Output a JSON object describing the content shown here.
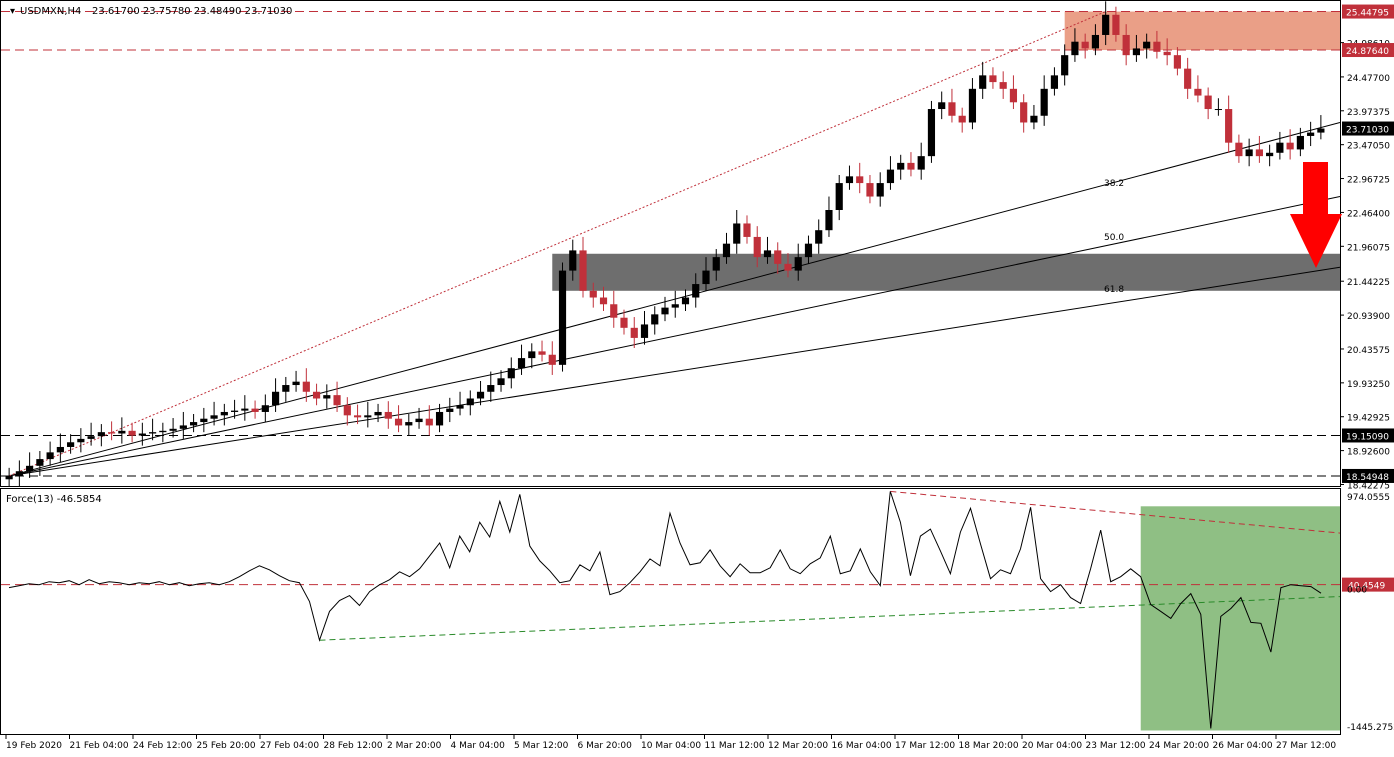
{
  "header": {
    "symbol": "USDMXN,H4",
    "ohlc": "23.61700 23.75780 23.48490 23.71030"
  },
  "indicator": {
    "label": "Force(13) -46.5854"
  },
  "colors": {
    "background": "#ffffff",
    "bull_candle": "#000000",
    "bear_candle": "#c0303a",
    "resistance_zone": "#e8957a",
    "support_zone": "#6e6e6e",
    "force_zone": "#8fbf84",
    "dashed_level": "#c0303a",
    "arrow": "#ff0000",
    "green_trend": "#2a8a2a"
  },
  "chart_data": [
    {
      "type": "candlestick",
      "title": "USDMXN,H4",
      "ylim": [
        18.43,
        25.56
      ],
      "grid": false,
      "y_ticks": [
        "25.44795",
        "24.98610",
        "24.87640",
        "24.47700",
        "23.97375",
        "23.71030",
        "23.47050",
        "22.96725",
        "22.46400",
        "21.96075",
        "21.44225",
        "20.93900",
        "20.43575",
        "19.93250",
        "19.42925",
        "19.15090",
        "18.92600",
        "18.54948",
        "18.42275"
      ],
      "y_tick_values": [
        25.44795,
        24.9861,
        24.8764,
        24.477,
        23.97375,
        23.7103,
        23.4705,
        22.96725,
        22.464,
        21.96075,
        21.44225,
        20.939,
        20.43575,
        19.9325,
        19.42925,
        19.1509,
        18.926,
        18.54948,
        18.42275
      ],
      "highlighted_labels": [
        "25.44795",
        "24.87640",
        "23.71030",
        "19.15090",
        "18.54948"
      ],
      "x_ticks": [
        "19 Feb 2020",
        "21 Feb 04:00",
        "24 Feb 12:00",
        "25 Feb 20:00",
        "27 Feb 04:00",
        "28 Feb 12:00",
        "2 Mar 20:00",
        "4 Mar 04:00",
        "5 Mar 12:00",
        "6 Mar 20:00",
        "10 Mar 04:00",
        "11 Mar 12:00",
        "12 Mar 20:00",
        "16 Mar 04:00",
        "17 Mar 12:00",
        "18 Mar 20:00",
        "20 Mar 04:00",
        "23 Mar 12:00",
        "24 Mar 20:00",
        "26 Mar 04:00",
        "27 Mar 12:00"
      ],
      "closes": [
        18.55,
        18.62,
        18.7,
        18.8,
        18.9,
        18.98,
        19.05,
        19.1,
        19.14,
        19.2,
        19.18,
        19.22,
        19.15,
        19.18,
        19.2,
        19.22,
        19.25,
        19.3,
        19.35,
        19.4,
        19.45,
        19.5,
        19.52,
        19.55,
        19.5,
        19.6,
        19.8,
        19.9,
        19.95,
        19.8,
        19.7,
        19.75,
        19.6,
        19.45,
        19.42,
        19.45,
        19.5,
        19.4,
        19.3,
        19.35,
        19.4,
        19.3,
        19.5,
        19.55,
        19.6,
        19.7,
        19.8,
        19.9,
        20.0,
        20.15,
        20.3,
        20.4,
        20.35,
        20.2,
        21.6,
        21.9,
        21.3,
        21.2,
        21.1,
        20.9,
        20.75,
        20.6,
        20.8,
        20.95,
        21.05,
        21.1,
        21.2,
        21.4,
        21.6,
        21.8,
        22.0,
        22.3,
        22.1,
        21.8,
        21.9,
        21.7,
        21.6,
        21.8,
        22.0,
        22.2,
        22.5,
        22.9,
        23.0,
        22.9,
        22.7,
        22.9,
        23.1,
        23.2,
        23.1,
        23.3,
        24.0,
        24.1,
        23.9,
        23.8,
        24.3,
        24.5,
        24.4,
        24.3,
        24.1,
        23.8,
        23.9,
        24.3,
        24.5,
        24.8,
        25.0,
        24.9,
        25.1,
        25.4,
        25.1,
        24.8,
        24.9,
        25.0,
        24.85,
        24.8,
        24.6,
        24.3,
        24.2,
        24.0,
        24.0,
        23.5,
        23.3,
        23.4,
        23.3,
        23.35,
        23.5,
        23.4,
        23.6,
        23.65,
        23.7103
      ],
      "levels": [
        {
          "label": "25.44795",
          "value": 25.44795
        },
        {
          "label": "24.87640",
          "value": 24.8764
        },
        {
          "label": "19.15090",
          "value": 19.1509
        },
        {
          "label": "18.54948",
          "value": 18.54948
        }
      ],
      "resistance_zone": [
        24.8764,
        25.44795
      ],
      "support_zone": [
        21.3,
        21.85
      ],
      "fibonacci_labels": [
        "38.2",
        "50.0",
        "61.8"
      ],
      "current_price": 23.7103
    },
    {
      "type": "line",
      "title": "Force(13) -46.5854",
      "ylim": [
        -1445.2752,
        974.0555
      ],
      "grid": false,
      "y_ticks": [
        "974.0555",
        "40.4549",
        "0.00",
        "-1445.2752"
      ],
      "y_tick_values": [
        974.0555,
        40.4549,
        0,
        -1445.2752
      ],
      "highlighted_labels": [
        "40.4549"
      ],
      "level_line": 40.4549,
      "series": [
        {
          "values": [
            10,
            30,
            50,
            40,
            70,
            60,
            80,
            40,
            90,
            50,
            70,
            60,
            40,
            60,
            50,
            70,
            40,
            60,
            30,
            50,
            60,
            40,
            70,
            120,
            180,
            230,
            190,
            130,
            80,
            60,
            -130,
            -520,
            -230,
            -120,
            -70,
            -170,
            -30,
            40,
            90,
            170,
            120,
            200,
            330,
            460,
            210,
            530,
            370,
            670,
            520,
            880,
            570,
            950,
            430,
            280,
            180,
            60,
            80,
            240,
            180,
            370,
            -60,
            -30,
            60,
            170,
            300,
            230,
            760,
            460,
            240,
            260,
            390,
            230,
            120,
            250,
            160,
            160,
            210,
            390,
            200,
            150,
            250,
            310,
            530,
            150,
            180,
            400,
            170,
            30,
            980,
            670,
            130,
            530,
            600,
            380,
            150,
            570,
            810,
            450,
            100,
            190,
            150,
            400,
            820,
            100,
            -30,
            40,
            -90,
            -150,
            200,
            590,
            70,
            120,
            200,
            120,
            -160,
            -230,
            -300,
            -150,
            -50,
            -260,
            -1410,
            -280,
            -200,
            -90,
            -340,
            -350,
            -640,
            10,
            40,
            30,
            20,
            -46.5854
          ]
        },
        {
          "values": []
        }
      ],
      "zone_label": ""
    }
  ]
}
